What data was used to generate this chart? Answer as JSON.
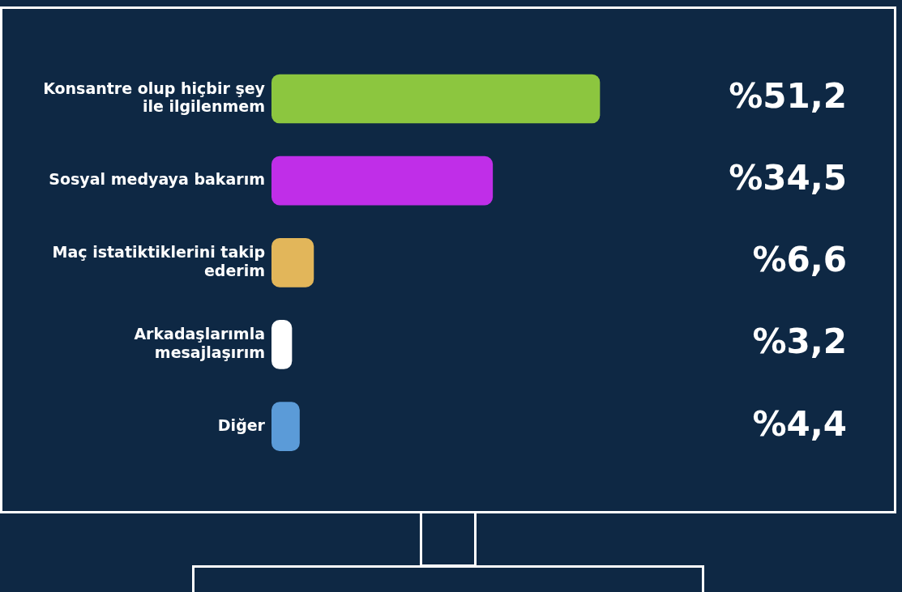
{
  "chart_data": {
    "type": "bar",
    "orientation": "horizontal",
    "categories": [
      "Konsantre olup hiçbir şey ile ilgilenmem",
      "Sosyal medyaya bakarım",
      "Maç istatiktiklerini takip ederim",
      "Arkadaşlarımla mesajlaşırım",
      "Diğer"
    ],
    "values": [
      51.2,
      34.5,
      6.6,
      3.2,
      4.4
    ],
    "colors": [
      "#8cc63f",
      "#c02ee8",
      "#e2b65a",
      "#ffffff",
      "#5b9bd8"
    ],
    "value_labels": [
      "%51,2",
      "%34,5",
      "%6,6",
      "%3,2",
      "%4,4"
    ],
    "tick_labels": "y",
    "grid": false,
    "legend": false
  }
}
